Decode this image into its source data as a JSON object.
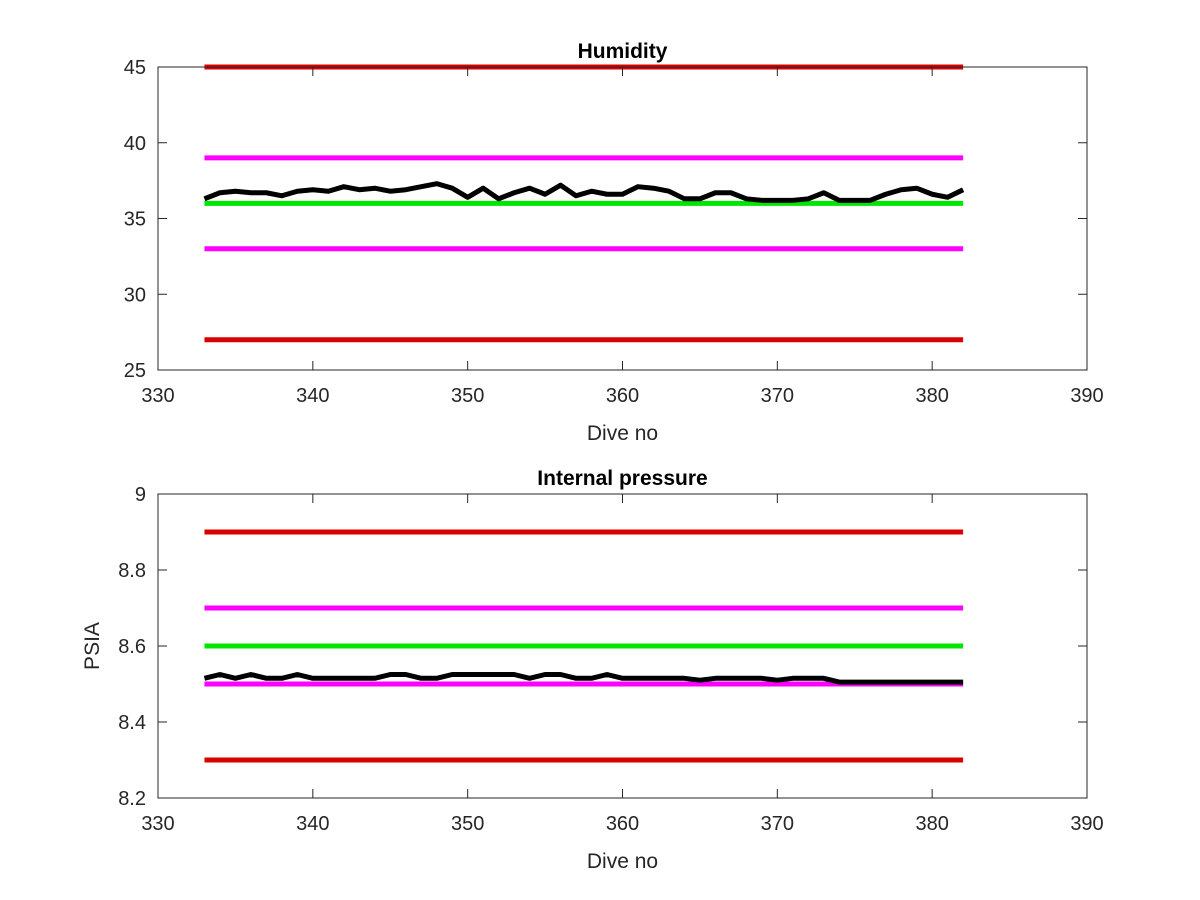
{
  "chart_data": [
    {
      "type": "line",
      "title": "Humidity",
      "xlabel": "Dive no",
      "ylabel": "",
      "xlim": [
        330,
        390
      ],
      "ylim": [
        25,
        45
      ],
      "xticks": [
        330,
        340,
        350,
        360,
        370,
        380,
        390
      ],
      "yticks": [
        25,
        30,
        35,
        40,
        45
      ],
      "grid": false,
      "series": [
        {
          "color": "#d90000",
          "x": [
            333,
            382
          ],
          "values": [
            45,
            45
          ]
        },
        {
          "color": "#ff00ff",
          "x": [
            333,
            382
          ],
          "values": [
            39,
            39
          ]
        },
        {
          "color": "#00e600",
          "x": [
            333,
            382
          ],
          "values": [
            36,
            36
          ]
        },
        {
          "color": "#ff00ff",
          "x": [
            333,
            382
          ],
          "values": [
            33,
            33
          ]
        },
        {
          "color": "#d90000",
          "x": [
            333,
            382
          ],
          "values": [
            27,
            27
          ]
        },
        {
          "color": "#000000",
          "x": [
            333,
            334,
            335,
            336,
            337,
            338,
            339,
            340,
            341,
            342,
            343,
            344,
            345,
            346,
            347,
            348,
            349,
            350,
            351,
            352,
            353,
            354,
            355,
            356,
            357,
            358,
            359,
            360,
            361,
            362,
            363,
            364,
            365,
            366,
            367,
            368,
            369,
            370,
            371,
            372,
            373,
            374,
            375,
            376,
            377,
            378,
            379,
            380,
            381,
            382
          ],
          "values": [
            36.3,
            36.7,
            36.8,
            36.7,
            36.7,
            36.5,
            36.8,
            36.9,
            36.8,
            37.1,
            36.9,
            37.0,
            36.8,
            36.9,
            37.1,
            37.3,
            37.0,
            36.4,
            37.0,
            36.3,
            36.7,
            37.0,
            36.6,
            37.2,
            36.5,
            36.8,
            36.6,
            36.6,
            37.1,
            37.0,
            36.8,
            36.3,
            36.3,
            36.7,
            36.7,
            36.3,
            36.2,
            36.2,
            36.2,
            36.3,
            36.7,
            36.2,
            36.2,
            36.2,
            36.6,
            36.9,
            37.0,
            36.6,
            36.4,
            36.9
          ]
        }
      ]
    },
    {
      "type": "line",
      "title": "Internal pressure",
      "xlabel": "Dive no",
      "ylabel": "PSIA",
      "xlim": [
        330,
        390
      ],
      "ylim": [
        8.2,
        9
      ],
      "xticks": [
        330,
        340,
        350,
        360,
        370,
        380,
        390
      ],
      "yticks": [
        "8.2",
        "8.4",
        "8.6",
        "8.8",
        "9"
      ],
      "grid": false,
      "series": [
        {
          "color": "#d90000",
          "x": [
            333,
            382
          ],
          "values": [
            8.9,
            8.9
          ]
        },
        {
          "color": "#ff00ff",
          "x": [
            333,
            382
          ],
          "values": [
            8.7,
            8.7
          ]
        },
        {
          "color": "#00e600",
          "x": [
            333,
            382
          ],
          "values": [
            8.6,
            8.6
          ]
        },
        {
          "color": "#ff00ff",
          "x": [
            333,
            382
          ],
          "values": [
            8.5,
            8.5
          ]
        },
        {
          "color": "#d90000",
          "x": [
            333,
            382
          ],
          "values": [
            8.3,
            8.3
          ]
        },
        {
          "color": "#000000",
          "x": [
            333,
            334,
            335,
            336,
            337,
            338,
            339,
            340,
            341,
            342,
            343,
            344,
            345,
            346,
            347,
            348,
            349,
            350,
            351,
            352,
            353,
            354,
            355,
            356,
            357,
            358,
            359,
            360,
            361,
            362,
            363,
            364,
            365,
            366,
            367,
            368,
            369,
            370,
            371,
            372,
            373,
            374,
            375,
            376,
            377,
            378,
            379,
            380,
            381,
            382
          ],
          "values": [
            8.515,
            8.525,
            8.515,
            8.525,
            8.515,
            8.515,
            8.525,
            8.515,
            8.515,
            8.515,
            8.515,
            8.515,
            8.525,
            8.525,
            8.515,
            8.515,
            8.525,
            8.525,
            8.525,
            8.525,
            8.525,
            8.515,
            8.525,
            8.525,
            8.515,
            8.515,
            8.525,
            8.515,
            8.515,
            8.515,
            8.515,
            8.515,
            8.51,
            8.515,
            8.515,
            8.515,
            8.515,
            8.51,
            8.515,
            8.515,
            8.515,
            8.505,
            8.505,
            8.505,
            8.505,
            8.505,
            8.505,
            8.505,
            8.505,
            8.505
          ]
        }
      ]
    }
  ]
}
